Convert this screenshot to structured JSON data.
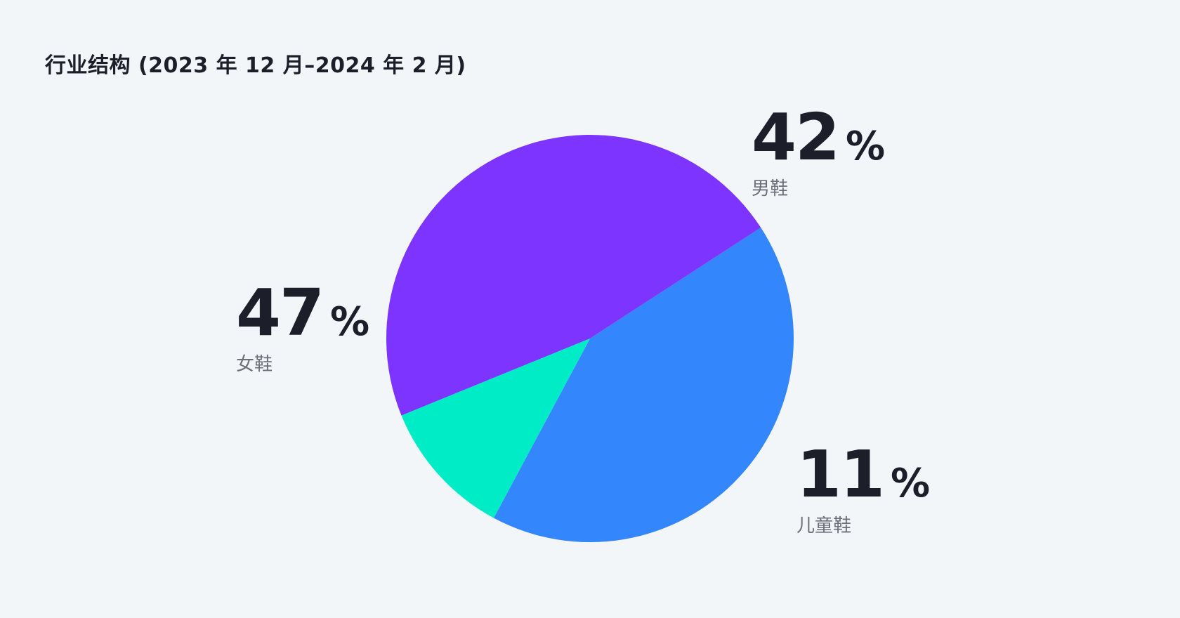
{
  "chart_data": {
    "type": "pie",
    "title": "行业结构 (2023 年 12 月–2024 年 2 月)",
    "unit": "%",
    "slices": [
      {
        "label": "男鞋",
        "value": 42,
        "color": "#3386fc"
      },
      {
        "label": "儿童鞋",
        "value": 11,
        "color": "#00ecc6"
      },
      {
        "label": "女鞋",
        "value": 47,
        "color": "#7d34fe"
      }
    ],
    "start_angle_deg": -33,
    "direction": "clockwise",
    "legend": "none"
  }
}
